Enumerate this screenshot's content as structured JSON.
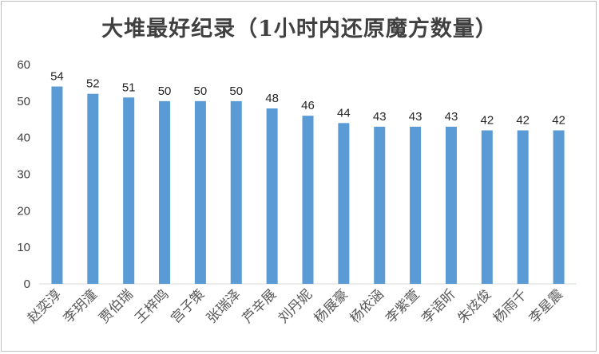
{
  "chart_data": {
    "type": "bar",
    "title": "大堆最好纪录（1小时内还原魔方数量）",
    "categories": [
      "赵奕淳",
      "李玥潼",
      "贾伯瑞",
      "王梓鸣",
      "宫子策",
      "张瑞泽",
      "芦辛展",
      "刘丹妮",
      "杨展豪",
      "杨依涵",
      "李紫萱",
      "李语昕",
      "朱炫俊",
      "杨雨千",
      "李星震"
    ],
    "values": [
      54,
      52,
      51,
      50,
      50,
      50,
      48,
      46,
      44,
      43,
      43,
      43,
      42,
      42,
      42
    ],
    "ylim": [
      0,
      60
    ],
    "yticks": [
      0,
      10,
      20,
      30,
      40,
      50,
      60
    ],
    "xlabel": "",
    "ylabel": "",
    "grid": false,
    "bar_color": "#5b9bd5"
  }
}
